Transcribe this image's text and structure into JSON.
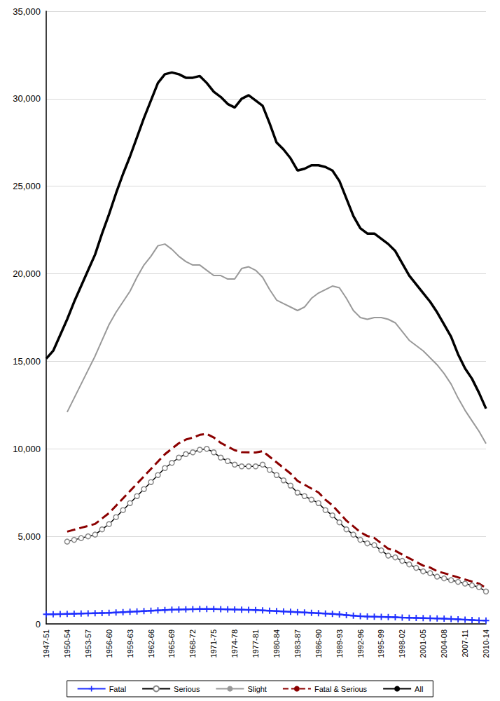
{
  "chart_data": {
    "type": "line",
    "categories": [
      "1947-51",
      null,
      null,
      "1950-54",
      null,
      null,
      "1953-57",
      null,
      null,
      "1956-60",
      null,
      null,
      "1959-63",
      null,
      null,
      "1962-66",
      null,
      null,
      "1965-69",
      null,
      null,
      "1968-72",
      null,
      null,
      "1971-75",
      null,
      null,
      "1974-78",
      null,
      null,
      "1977-81",
      null,
      null,
      "1980-84",
      null,
      null,
      "1983-87",
      null,
      null,
      "1986-90",
      null,
      null,
      "1989-93",
      null,
      null,
      "1992-96",
      null,
      null,
      "1995-99",
      null,
      null,
      "1998-02",
      null,
      null,
      "2001-05",
      null,
      null,
      "2004-08",
      null,
      null,
      "2007-11",
      null,
      null,
      "2010-14"
    ],
    "series": [
      {
        "name": "Fatal",
        "color": "#1f2fff",
        "marker": "plus",
        "line_style": "solid",
        "values": [
          550,
          550,
          560,
          570,
          580,
          590,
          600,
          610,
          620,
          630,
          650,
          670,
          690,
          710,
          730,
          750,
          770,
          790,
          810,
          820,
          830,
          840,
          850,
          850,
          850,
          840,
          830,
          820,
          810,
          800,
          790,
          770,
          750,
          730,
          710,
          690,
          670,
          650,
          630,
          610,
          590,
          570,
          540,
          500,
          470,
          440,
          420,
          410,
          400,
          390,
          380,
          360,
          350,
          340,
          330,
          320,
          310,
          300,
          280,
          260,
          240,
          220,
          200,
          190
        ]
      },
      {
        "name": "Serious",
        "color": "#000000",
        "marker": "circle",
        "line_style": "solid",
        "values": [
          null,
          null,
          null,
          4700,
          4800,
          4900,
          5000,
          5100,
          5400,
          5700,
          6100,
          6500,
          6900,
          7300,
          7700,
          8100,
          8500,
          8900,
          9200,
          9500,
          9700,
          9800,
          9950,
          10000,
          9800,
          9500,
          9300,
          9100,
          9000,
          9000,
          9000,
          9100,
          8800,
          8500,
          8200,
          7900,
          7500,
          7300,
          7100,
          6900,
          6500,
          6200,
          5800,
          5400,
          5100,
          4800,
          4600,
          4500,
          4200,
          3900,
          3800,
          3600,
          3400,
          3200,
          3000,
          2900,
          2700,
          2600,
          2500,
          2400,
          2300,
          2200,
          2100,
          1850
        ]
      },
      {
        "name": "Slight",
        "color": "#999999",
        "marker": "none",
        "line_style": "solid",
        "values": [
          null,
          null,
          null,
          12100,
          12900,
          13700,
          14500,
          15300,
          16200,
          17100,
          17800,
          18400,
          19000,
          19800,
          20500,
          21000,
          21600,
          21700,
          21400,
          21000,
          20700,
          20500,
          20500,
          20200,
          19900,
          19900,
          19700,
          19700,
          20300,
          20400,
          20200,
          19800,
          19100,
          18500,
          18300,
          18100,
          17900,
          18100,
          18600,
          18900,
          19100,
          19300,
          19200,
          18600,
          17900,
          17500,
          17400,
          17500,
          17500,
          17400,
          17200,
          16700,
          16200,
          15900,
          15600,
          15200,
          14800,
          14300,
          13700,
          12900,
          12200,
          11600,
          11000,
          10300
        ]
      },
      {
        "name": "Fatal & Serious",
        "color": "#8b0000",
        "marker": "none",
        "line_style": "dashed",
        "values": [
          null,
          null,
          null,
          5270,
          5380,
          5490,
          5600,
          5710,
          6020,
          6330,
          6750,
          7170,
          7590,
          8010,
          8430,
          8850,
          9270,
          9690,
          10010,
          10320,
          10530,
          10640,
          10800,
          10850,
          10650,
          10340,
          10130,
          9920,
          9810,
          9800,
          9790,
          9870,
          9550,
          9230,
          8910,
          8590,
          8170,
          7950,
          7730,
          7510,
          7090,
          6770,
          6340,
          5900,
          5570,
          5240,
          5020,
          4910,
          4600,
          4290,
          4180,
          3960,
          3750,
          3540,
          3330,
          3220,
          3010,
          2900,
          2780,
          2660,
          2540,
          2420,
          2300,
          2040
        ]
      },
      {
        "name": "All",
        "color": "#000000",
        "marker": "none",
        "line_style": "solid",
        "values": [
          15150,
          15600,
          16500,
          17400,
          18400,
          19300,
          20200,
          21100,
          22300,
          23400,
          24600,
          25700,
          26700,
          27800,
          28900,
          29900,
          30900,
          31400,
          31500,
          31400,
          31200,
          31200,
          31300,
          30900,
          30400,
          30100,
          29700,
          29500,
          30000,
          30200,
          29900,
          29600,
          28600,
          27500,
          27100,
          26600,
          25900,
          26000,
          26200,
          26200,
          26100,
          25900,
          25300,
          24300,
          23300,
          22600,
          22300,
          22300,
          22000,
          21700,
          21300,
          20600,
          19900,
          19400,
          18900,
          18400,
          17800,
          17100,
          16400,
          15400,
          14600,
          14000,
          13200,
          12300
        ]
      }
    ],
    "ylim": [
      0,
      35000
    ],
    "yticks": [
      0,
      {
        "value": 5000,
        "label": "5,000"
      },
      {
        "value": 10000,
        "label": "10,000"
      },
      {
        "value": 15000,
        "label": "15,000"
      },
      {
        "value": 20000,
        "label": "20,000"
      },
      {
        "value": 25000,
        "label": "25,000"
      },
      {
        "value": 30000,
        "label": "30,000"
      },
      {
        "value": 35000,
        "label": "35,000"
      }
    ],
    "grid": true,
    "legend": "bottom"
  }
}
